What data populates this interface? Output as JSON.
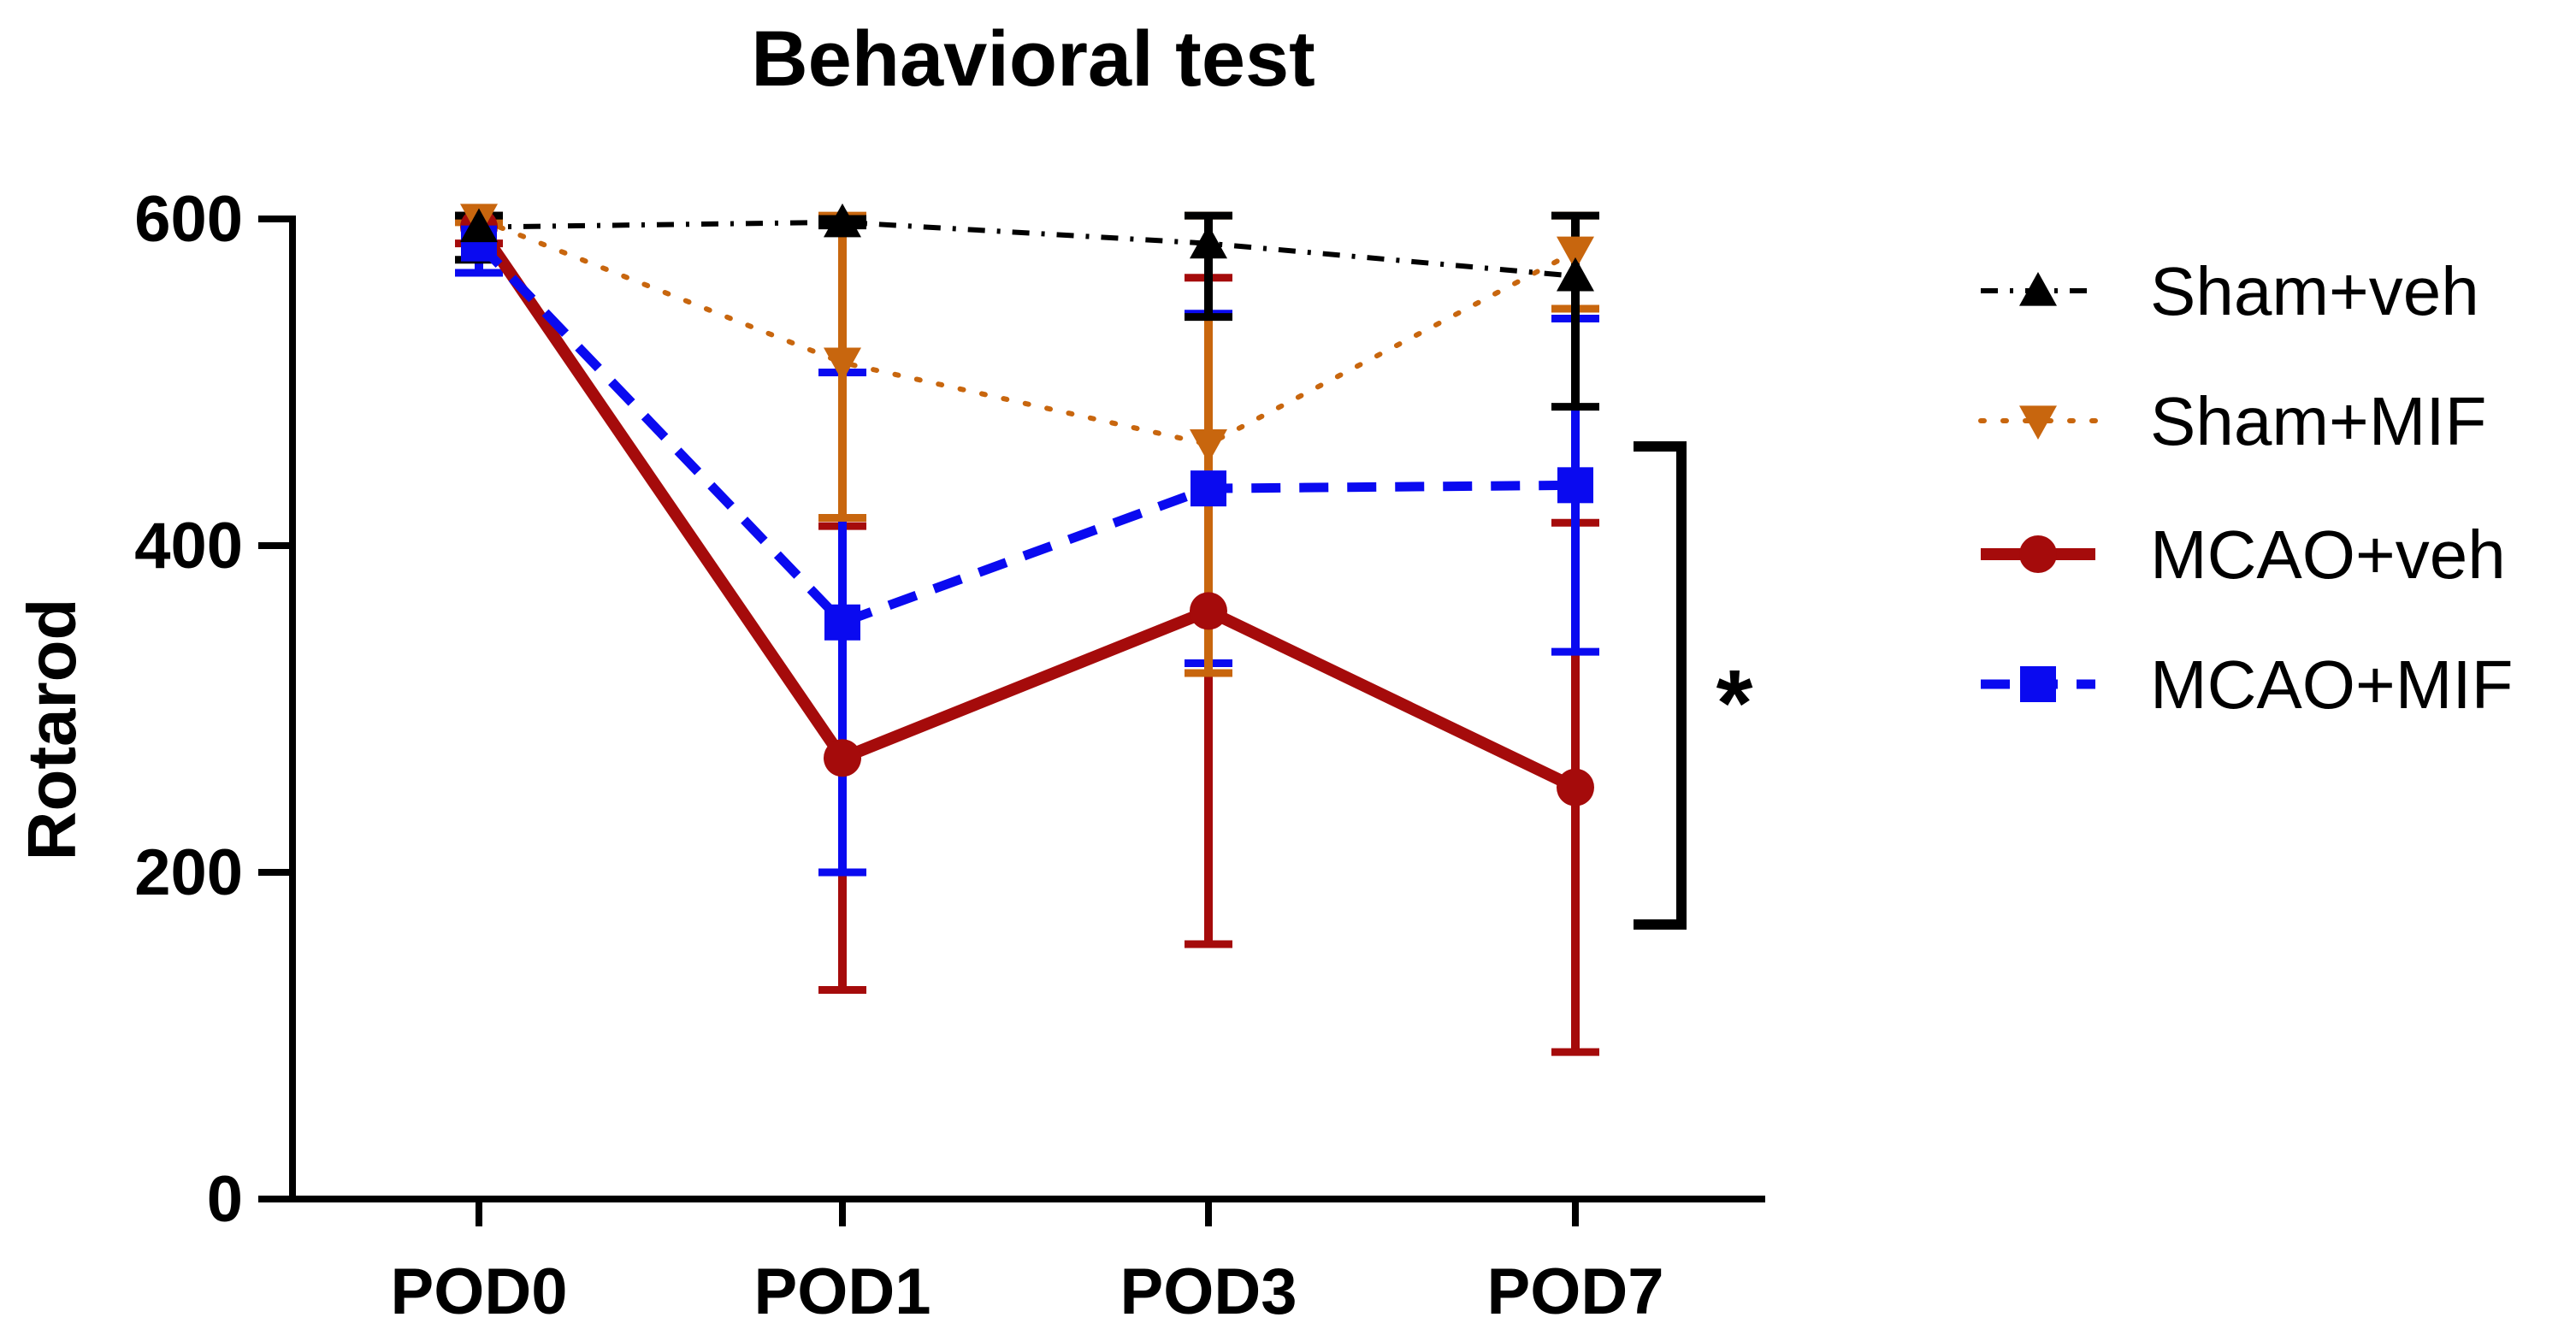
{
  "chart_data": {
    "type": "line",
    "title": "Behavioral test",
    "xlabel": "",
    "ylabel": "Rotarod",
    "categories": [
      "POD0",
      "POD1",
      "POD3",
      "POD7"
    ],
    "ylim": [
      0,
      600
    ],
    "yticks": [
      0,
      200,
      400,
      600
    ],
    "series": [
      {
        "name": "Sham+veh",
        "values": [
          595,
          598,
          585,
          565
        ],
        "error": [
          20,
          2,
          45,
          80
        ],
        "color": "#000000",
        "marker": "triangle-up",
        "linestyle": "dashdot"
      },
      {
        "name": "Sham+MIF",
        "values": [
          600,
          512,
          462,
          580
        ],
        "error": [
          2,
          95,
          140,
          35
        ],
        "color": "#C8660E",
        "marker": "triangle-down",
        "linestyle": "dotted"
      },
      {
        "name": "MCAO+veh",
        "values": [
          595,
          270,
          360,
          252
        ],
        "error": [
          10,
          142,
          204,
          162
        ],
        "color": "#A50B0B",
        "marker": "circle",
        "linestyle": "solid"
      },
      {
        "name": "MCAO+MIF",
        "values": [
          585,
          353,
          435,
          437
        ],
        "error": [
          18,
          153,
          107,
          102
        ],
        "color": "#0A0AF0",
        "marker": "square",
        "linestyle": "dashed"
      }
    ],
    "annotations": [
      {
        "text": "*",
        "target": "POD7"
      }
    ]
  }
}
